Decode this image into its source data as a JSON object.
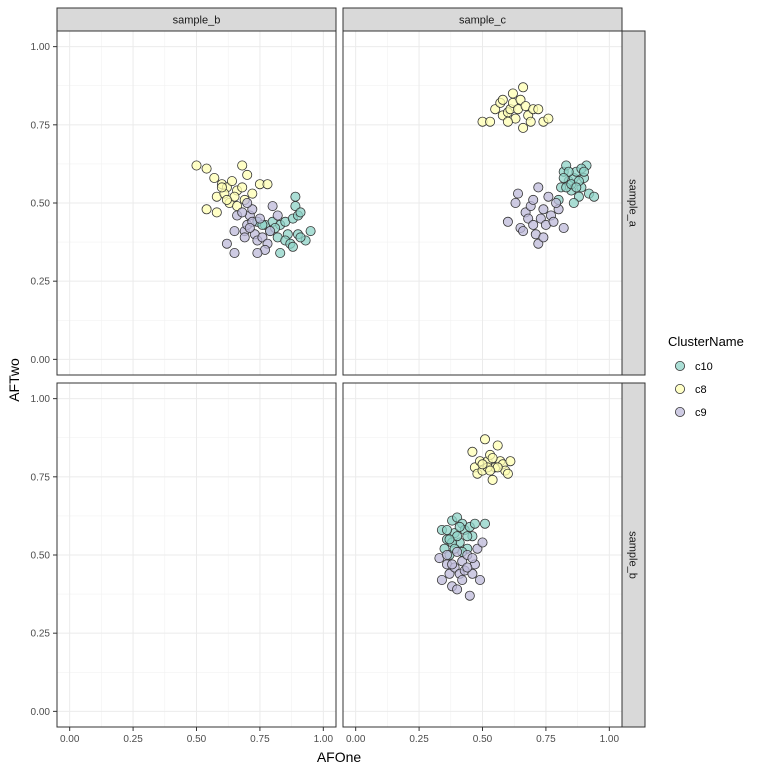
{
  "chart_data": {
    "type": "scatter",
    "facet_columns": [
      "sample_b",
      "sample_c"
    ],
    "facet_rows": [
      "sample_a",
      "sample_b"
    ],
    "xlabel": "AFOne",
    "ylabel": "AFTwo",
    "xlim": [
      -0.05,
      1.05
    ],
    "ylim": [
      -0.05,
      1.05
    ],
    "x_ticks": [
      "0.00",
      "0.25",
      "0.50",
      "0.75",
      "1.00"
    ],
    "y_ticks": [
      "0.00",
      "0.25",
      "0.50",
      "0.75",
      "1.00"
    ],
    "grid": true,
    "legend": {
      "title": "ClusterName",
      "position": "right",
      "entries": [
        {
          "name": "c10",
          "color": "#8DD3C7"
        },
        {
          "name": "c8",
          "color": "#FFFFB3"
        },
        {
          "name": "c9",
          "color": "#BEBADA"
        }
      ]
    },
    "panels": [
      {
        "row": "sample_a",
        "col": "sample_b",
        "series": [
          {
            "name": "c8",
            "points": [
              [
                0.5,
                0.62
              ],
              [
                0.54,
                0.61
              ],
              [
                0.57,
                0.58
              ],
              [
                0.6,
                0.56
              ],
              [
                0.62,
                0.55
              ],
              [
                0.64,
                0.57
              ],
              [
                0.66,
                0.54
              ],
              [
                0.68,
                0.62
              ],
              [
                0.7,
                0.59
              ],
              [
                0.63,
                0.5
              ],
              [
                0.58,
                0.52
              ],
              [
                0.61,
                0.53
              ],
              [
                0.65,
                0.52
              ],
              [
                0.68,
                0.55
              ],
              [
                0.72,
                0.53
              ],
              [
                0.75,
                0.56
              ],
              [
                0.78,
                0.56
              ],
              [
                0.58,
                0.47
              ],
              [
                0.54,
                0.48
              ],
              [
                0.66,
                0.49
              ],
              [
                0.69,
                0.51
              ],
              [
                0.6,
                0.55
              ],
              [
                0.62,
                0.51
              ]
            ]
          },
          {
            "name": "c10",
            "points": [
              [
                0.74,
                0.44
              ],
              [
                0.77,
                0.43
              ],
              [
                0.8,
                0.44
              ],
              [
                0.83,
                0.43
              ],
              [
                0.85,
                0.44
              ],
              [
                0.88,
                0.45
              ],
              [
                0.9,
                0.46
              ],
              [
                0.89,
                0.49
              ],
              [
                0.89,
                0.52
              ],
              [
                0.91,
                0.47
              ],
              [
                0.86,
                0.4
              ],
              [
                0.9,
                0.4
              ],
              [
                0.93,
                0.38
              ],
              [
                0.95,
                0.41
              ],
              [
                0.82,
                0.39
              ],
              [
                0.85,
                0.38
              ],
              [
                0.87,
                0.37
              ],
              [
                0.79,
                0.41
              ],
              [
                0.83,
                0.34
              ],
              [
                0.88,
                0.36
              ],
              [
                0.76,
                0.43
              ],
              [
                0.81,
                0.42
              ],
              [
                0.91,
                0.39
              ]
            ]
          },
          {
            "name": "c9",
            "points": [
              [
                0.62,
                0.37
              ],
              [
                0.65,
                0.41
              ],
              [
                0.66,
                0.46
              ],
              [
                0.69,
                0.41
              ],
              [
                0.7,
                0.43
              ],
              [
                0.71,
                0.46
              ],
              [
                0.72,
                0.48
              ],
              [
                0.73,
                0.4
              ],
              [
                0.74,
                0.38
              ],
              [
                0.76,
                0.39
              ],
              [
                0.78,
                0.37
              ],
              [
                0.8,
                0.49
              ],
              [
                0.82,
                0.46
              ],
              [
                0.68,
                0.47
              ],
              [
                0.7,
                0.5
              ],
              [
                0.72,
                0.44
              ],
              [
                0.75,
                0.45
              ],
              [
                0.77,
                0.35
              ],
              [
                0.65,
                0.34
              ],
              [
                0.74,
                0.34
              ],
              [
                0.69,
                0.39
              ],
              [
                0.79,
                0.41
              ],
              [
                0.71,
                0.42
              ]
            ]
          }
        ]
      },
      {
        "row": "sample_a",
        "col": "sample_c",
        "series": [
          {
            "name": "c8",
            "points": [
              [
                0.5,
                0.76
              ],
              [
                0.53,
                0.76
              ],
              [
                0.55,
                0.8
              ],
              [
                0.57,
                0.82
              ],
              [
                0.58,
                0.78
              ],
              [
                0.6,
                0.79
              ],
              [
                0.61,
                0.8
              ],
              [
                0.62,
                0.82
              ],
              [
                0.63,
                0.77
              ],
              [
                0.64,
                0.8
              ],
              [
                0.65,
                0.83
              ],
              [
                0.66,
                0.87
              ],
              [
                0.67,
                0.81
              ],
              [
                0.68,
                0.78
              ],
              [
                0.69,
                0.76
              ],
              [
                0.7,
                0.8
              ],
              [
                0.72,
                0.8
              ],
              [
                0.74,
                0.76
              ],
              [
                0.76,
                0.77
              ],
              [
                0.66,
                0.74
              ],
              [
                0.6,
                0.76
              ],
              [
                0.62,
                0.85
              ],
              [
                0.58,
                0.83
              ]
            ]
          },
          {
            "name": "c10",
            "points": [
              [
                0.8,
                0.51
              ],
              [
                0.81,
                0.55
              ],
              [
                0.82,
                0.6
              ],
              [
                0.83,
                0.62
              ],
              [
                0.84,
                0.57
              ],
              [
                0.85,
                0.54
              ],
              [
                0.86,
                0.58
              ],
              [
                0.87,
                0.6
              ],
              [
                0.88,
                0.52
              ],
              [
                0.89,
                0.55
              ],
              [
                0.9,
                0.58
              ],
              [
                0.91,
                0.62
              ],
              [
                0.92,
                0.53
              ],
              [
                0.94,
                0.52
              ],
              [
                0.86,
                0.5
              ],
              [
                0.83,
                0.55
              ],
              [
                0.85,
                0.56
              ],
              [
                0.88,
                0.57
              ],
              [
                0.84,
                0.6
              ],
              [
                0.87,
                0.55
              ],
              [
                0.82,
                0.58
              ],
              [
                0.89,
                0.61
              ],
              [
                0.9,
                0.6
              ]
            ]
          },
          {
            "name": "c9",
            "points": [
              [
                0.6,
                0.44
              ],
              [
                0.63,
                0.5
              ],
              [
                0.64,
                0.53
              ],
              [
                0.65,
                0.42
              ],
              [
                0.67,
                0.47
              ],
              [
                0.68,
                0.45
              ],
              [
                0.69,
                0.49
              ],
              [
                0.7,
                0.51
              ],
              [
                0.71,
                0.4
              ],
              [
                0.72,
                0.37
              ],
              [
                0.73,
                0.45
              ],
              [
                0.74,
                0.48
              ],
              [
                0.75,
                0.43
              ],
              [
                0.76,
                0.52
              ],
              [
                0.77,
                0.46
              ],
              [
                0.78,
                0.44
              ],
              [
                0.8,
                0.48
              ],
              [
                0.82,
                0.42
              ],
              [
                0.72,
                0.55
              ],
              [
                0.66,
                0.41
              ],
              [
                0.7,
                0.43
              ],
              [
                0.74,
                0.39
              ],
              [
                0.79,
                0.5
              ]
            ]
          }
        ]
      },
      {
        "row": "sample_b",
        "col": "sample_b",
        "series": []
      },
      {
        "row": "sample_b",
        "col": "sample_c",
        "series": [
          {
            "name": "c8",
            "points": [
              [
                0.46,
                0.83
              ],
              [
                0.47,
                0.78
              ],
              [
                0.48,
                0.76
              ],
              [
                0.49,
                0.8
              ],
              [
                0.5,
                0.77
              ],
              [
                0.51,
                0.87
              ],
              [
                0.52,
                0.8
              ],
              [
                0.53,
                0.82
              ],
              [
                0.54,
                0.74
              ],
              [
                0.55,
                0.78
              ],
              [
                0.56,
                0.85
              ],
              [
                0.57,
                0.8
              ],
              [
                0.58,
                0.79
              ],
              [
                0.59,
                0.77
              ],
              [
                0.6,
                0.76
              ],
              [
                0.61,
                0.8
              ],
              [
                0.52,
                0.78
              ],
              [
                0.54,
                0.81
              ],
              [
                0.5,
                0.79
              ],
              [
                0.56,
                0.78
              ],
              [
                0.53,
                0.77
              ]
            ]
          },
          {
            "name": "c10",
            "points": [
              [
                0.34,
                0.58
              ],
              [
                0.35,
                0.52
              ],
              [
                0.36,
                0.55
              ],
              [
                0.37,
                0.5
              ],
              [
                0.38,
                0.61
              ],
              [
                0.39,
                0.57
              ],
              [
                0.4,
                0.62
              ],
              [
                0.41,
                0.54
              ],
              [
                0.42,
                0.6
              ],
              [
                0.43,
                0.58
              ],
              [
                0.44,
                0.52
              ],
              [
                0.45,
                0.59
              ],
              [
                0.46,
                0.56
              ],
              [
                0.47,
                0.6
              ],
              [
                0.51,
                0.6
              ],
              [
                0.38,
                0.54
              ],
              [
                0.4,
                0.56
              ],
              [
                0.42,
                0.51
              ],
              [
                0.36,
                0.58
              ],
              [
                0.39,
                0.52
              ],
              [
                0.44,
                0.56
              ],
              [
                0.41,
                0.59
              ],
              [
                0.37,
                0.55
              ]
            ]
          },
          {
            "name": "c9",
            "points": [
              [
                0.33,
                0.49
              ],
              [
                0.34,
                0.42
              ],
              [
                0.36,
                0.47
              ],
              [
                0.37,
                0.44
              ],
              [
                0.38,
                0.4
              ],
              [
                0.39,
                0.46
              ],
              [
                0.4,
                0.39
              ],
              [
                0.41,
                0.44
              ],
              [
                0.42,
                0.48
              ],
              [
                0.43,
                0.45
              ],
              [
                0.44,
                0.5
              ],
              [
                0.45,
                0.37
              ],
              [
                0.46,
                0.44
              ],
              [
                0.47,
                0.47
              ],
              [
                0.48,
                0.52
              ],
              [
                0.49,
                0.42
              ],
              [
                0.5,
                0.54
              ],
              [
                0.38,
                0.47
              ],
              [
                0.4,
                0.51
              ],
              [
                0.42,
                0.42
              ],
              [
                0.44,
                0.46
              ],
              [
                0.36,
                0.5
              ],
              [
                0.46,
                0.49
              ]
            ]
          }
        ]
      }
    ]
  }
}
